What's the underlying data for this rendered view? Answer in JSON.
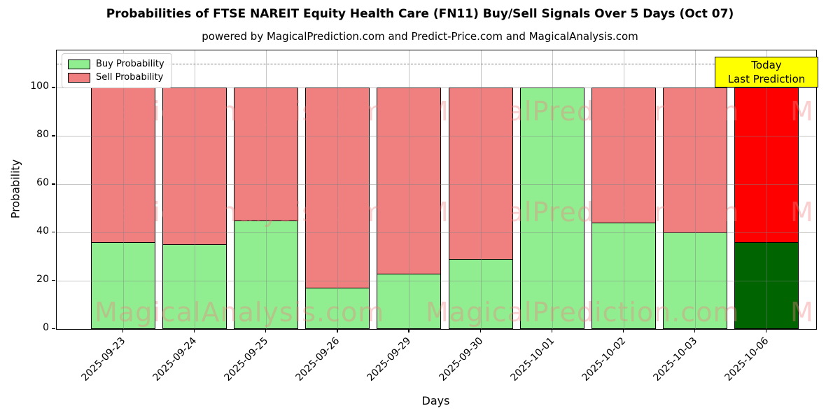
{
  "title": "Probabilities of FTSE NAREIT Equity Health Care (FN11) Buy/Sell Signals Over 5 Days (Oct 07)",
  "subtitle": "powered by MagicalPrediction.com and Predict-Price.com and MagicalAnalysis.com",
  "legend": {
    "items": [
      {
        "label": "Buy Probability",
        "color": "#90EE90"
      },
      {
        "label": "Sell Probability",
        "color": "#F08080"
      }
    ]
  },
  "annotation": {
    "line1": "Today",
    "line2": "Last Prediction",
    "bg_color": "#FFFF00"
  },
  "watermarks": {
    "left_text": "MagicalAnalysis.com",
    "right_text": "MagicalPrediction.com",
    "edge_text": "M",
    "color": "rgba(240,128,128,0.38)"
  },
  "chart_data": {
    "type": "bar",
    "stacked": true,
    "title": "Probabilities of FTSE NAREIT Equity Health Care (FN11) Buy/Sell Signals Over 5 Days (Oct 07)",
    "xlabel": "Days",
    "ylabel": "Probability",
    "categories": [
      "2025-09-23",
      "2025-09-24",
      "2025-09-25",
      "2025-09-26",
      "2025-09-29",
      "2025-09-30",
      "2025-10-01",
      "2025-10-02",
      "2025-10-03",
      "2025-10-06"
    ],
    "series": [
      {
        "name": "Buy Probability",
        "color": "#90EE90",
        "values": [
          36,
          35,
          45,
          17,
          23,
          29,
          100,
          44,
          40,
          36
        ]
      },
      {
        "name": "Sell Probability",
        "color": "#F08080",
        "values": [
          64,
          65,
          55,
          83,
          77,
          71,
          0,
          56,
          60,
          64
        ]
      }
    ],
    "today_index": 9,
    "today_colors": {
      "buy": "#006400",
      "sell": "#FF0000"
    },
    "yticks": [
      0,
      20,
      40,
      60,
      80,
      100
    ],
    "ylim": [
      0,
      115.5
    ],
    "dashed_hline_y": 110,
    "grid": true,
    "legend_position": "upper left"
  }
}
